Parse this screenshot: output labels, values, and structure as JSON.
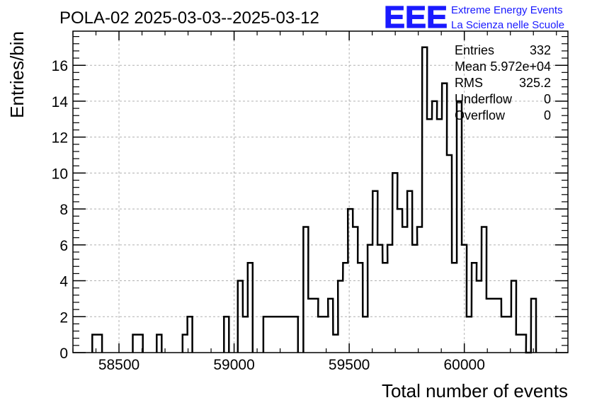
{
  "header": {
    "title": "POLA-02 2025-03-03--2025-03-12",
    "logo_text": "EEE",
    "logo_line1": "Extreme Energy Events",
    "logo_line2": "La Scienza nelle Scuole",
    "logo_color": "#1a1aff"
  },
  "stats": [
    {
      "label": "Entries",
      "value": "332"
    },
    {
      "label": "Mean",
      "value": "5.972e+04"
    },
    {
      "label": "RMS",
      "value": "325.2"
    },
    {
      "label": "Underflow",
      "value": "0"
    },
    {
      "label": "Overflow",
      "value": "0"
    }
  ],
  "chart_data": {
    "type": "histogram",
    "xlabel": "Total number of events",
    "ylabel": "Entries/bin",
    "xlim": [
      58300,
      60450
    ],
    "ylim": [
      0,
      17.9
    ],
    "grid": true,
    "xticks": [
      58500,
      59000,
      59500,
      60000
    ],
    "xtick_labels": [
      "58500",
      "59000",
      "59500",
      "60000"
    ],
    "yticks": [
      0,
      2,
      4,
      6,
      8,
      10,
      12,
      14,
      16
    ],
    "ytick_labels": [
      "0",
      "2",
      "4",
      "6",
      "8",
      "10",
      "12",
      "14",
      "16"
    ],
    "bin_width": 21.5,
    "bins": [
      {
        "x": 58384,
        "y": 1
      },
      {
        "x": 58405,
        "y": 1
      },
      {
        "x": 58560,
        "y": 1
      },
      {
        "x": 58582,
        "y": 1
      },
      {
        "x": 58664,
        "y": 1
      },
      {
        "x": 58776,
        "y": 1
      },
      {
        "x": 58797,
        "y": 2
      },
      {
        "x": 58956,
        "y": 2
      },
      {
        "x": 59016,
        "y": 4
      },
      {
        "x": 59038,
        "y": 2
      },
      {
        "x": 59059,
        "y": 5
      },
      {
        "x": 59127,
        "y": 2
      },
      {
        "x": 59148,
        "y": 2
      },
      {
        "x": 59170,
        "y": 2
      },
      {
        "x": 59191,
        "y": 2
      },
      {
        "x": 59213,
        "y": 2
      },
      {
        "x": 59234,
        "y": 2
      },
      {
        "x": 59256,
        "y": 2
      },
      {
        "x": 59301,
        "y": 7
      },
      {
        "x": 59322,
        "y": 3
      },
      {
        "x": 59344,
        "y": 3
      },
      {
        "x": 59365,
        "y": 2
      },
      {
        "x": 59387,
        "y": 2
      },
      {
        "x": 59408,
        "y": 3
      },
      {
        "x": 59430,
        "y": 1
      },
      {
        "x": 59451,
        "y": 4
      },
      {
        "x": 59473,
        "y": 5
      },
      {
        "x": 59494,
        "y": 8
      },
      {
        "x": 59516,
        "y": 7
      },
      {
        "x": 59537,
        "y": 5
      },
      {
        "x": 59559,
        "y": 2
      },
      {
        "x": 59580,
        "y": 6
      },
      {
        "x": 59602,
        "y": 9
      },
      {
        "x": 59623,
        "y": 6
      },
      {
        "x": 59645,
        "y": 5
      },
      {
        "x": 59666,
        "y": 6
      },
      {
        "x": 59688,
        "y": 10
      },
      {
        "x": 59709,
        "y": 8
      },
      {
        "x": 59731,
        "y": 7
      },
      {
        "x": 59752,
        "y": 9
      },
      {
        "x": 59774,
        "y": 6
      },
      {
        "x": 59795,
        "y": 7
      },
      {
        "x": 59817,
        "y": 17
      },
      {
        "x": 59838,
        "y": 13
      },
      {
        "x": 59860,
        "y": 14
      },
      {
        "x": 59881,
        "y": 13
      },
      {
        "x": 59903,
        "y": 15
      },
      {
        "x": 59924,
        "y": 11
      },
      {
        "x": 59946,
        "y": 5
      },
      {
        "x": 59967,
        "y": 14
      },
      {
        "x": 59989,
        "y": 6
      },
      {
        "x": 60010,
        "y": 2
      },
      {
        "x": 60032,
        "y": 5
      },
      {
        "x": 60053,
        "y": 4
      },
      {
        "x": 60075,
        "y": 7
      },
      {
        "x": 60096,
        "y": 3
      },
      {
        "x": 60118,
        "y": 3
      },
      {
        "x": 60139,
        "y": 3
      },
      {
        "x": 60161,
        "y": 2
      },
      {
        "x": 60182,
        "y": 2
      },
      {
        "x": 60204,
        "y": 4
      },
      {
        "x": 60225,
        "y": 1
      },
      {
        "x": 60247,
        "y": 1
      },
      {
        "x": 60268,
        "y": 0
      },
      {
        "x": 60290,
        "y": 3
      }
    ]
  }
}
